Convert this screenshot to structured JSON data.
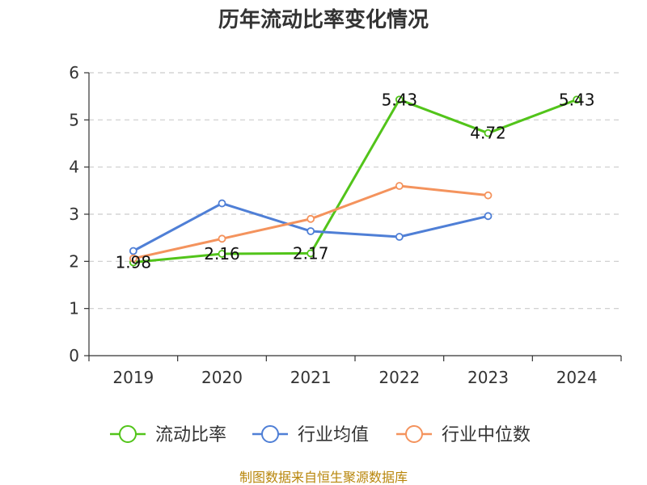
{
  "chart_data": {
    "type": "line",
    "title": "历年流动比率变化情况",
    "categories": [
      "2019",
      "2020",
      "2021",
      "2022",
      "2023",
      "2024"
    ],
    "ylim": [
      0,
      6
    ],
    "yticks": [
      "0",
      "1",
      "2",
      "3",
      "4",
      "5",
      "6"
    ],
    "grid": true,
    "legend_position": "bottom",
    "series": [
      {
        "name": "流动比率",
        "color": "#52c41a",
        "values": [
          1.98,
          2.16,
          2.17,
          5.43,
          4.72,
          5.43
        ],
        "labels": [
          "1.98",
          "2.16",
          "2.17",
          "5.43",
          "4.72",
          "5.43"
        ]
      },
      {
        "name": "行业均值",
        "color": "#4f7fd6",
        "values": [
          2.22,
          3.23,
          2.64,
          2.52,
          2.96,
          null
        ]
      },
      {
        "name": "行业中位数",
        "color": "#f4935d",
        "values": [
          2.06,
          2.48,
          2.9,
          3.6,
          3.4,
          null
        ]
      }
    ],
    "source": "制图数据来自恒生聚源数据库"
  }
}
